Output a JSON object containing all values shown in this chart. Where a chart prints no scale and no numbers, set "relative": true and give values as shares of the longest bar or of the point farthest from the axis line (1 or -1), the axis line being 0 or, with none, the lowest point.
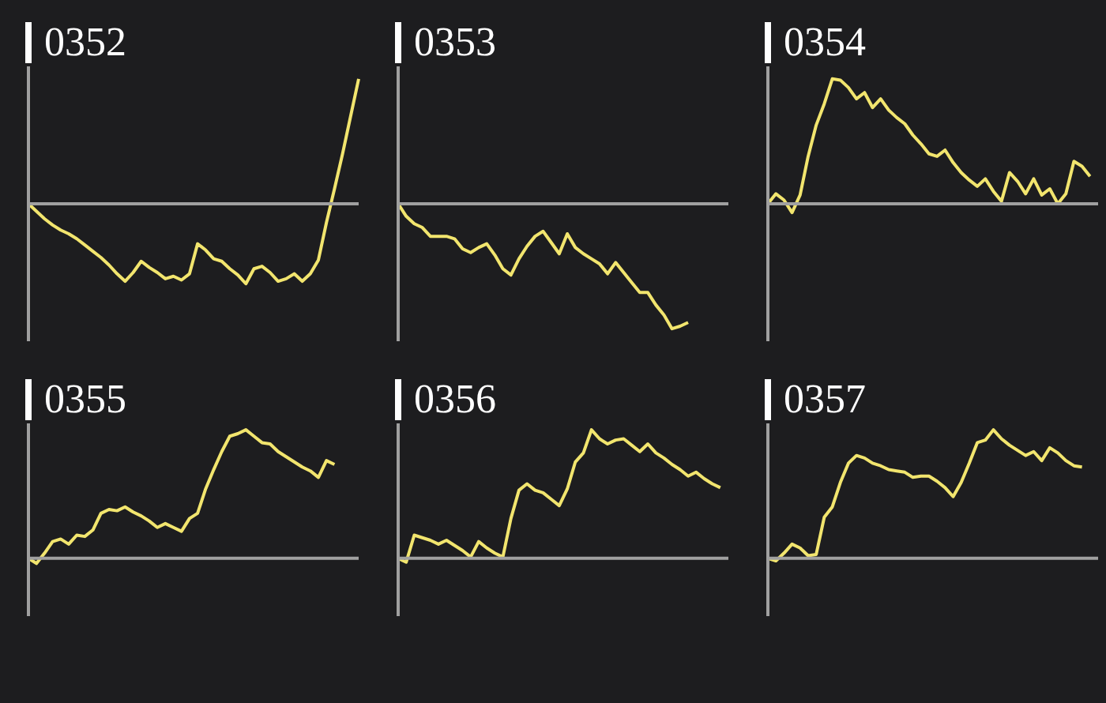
{
  "chart_data": [
    {
      "type": "line",
      "title": "0352",
      "relative": true,
      "categories": [
        null,
        null,
        null,
        null,
        null,
        null,
        null,
        null,
        null,
        null,
        null,
        null,
        null,
        null,
        null,
        null,
        null,
        null,
        null,
        null,
        null,
        null,
        null,
        null,
        null,
        null,
        null,
        null,
        null,
        null,
        null,
        null,
        null,
        null,
        null,
        null,
        null,
        null,
        null,
        null,
        null,
        null
      ],
      "series": [
        {
          "color": "#f2e56e",
          "values": [
            0,
            -0.06,
            -0.12,
            -0.17,
            -0.21,
            -0.24,
            -0.28,
            -0.33,
            -0.38,
            -0.43,
            -0.49,
            -0.56,
            -0.62,
            -0.55,
            -0.46,
            -0.51,
            -0.55,
            -0.6,
            -0.58,
            -0.61,
            -0.56,
            -0.32,
            -0.37,
            -0.44,
            -0.46,
            -0.52,
            -0.57,
            -0.64,
            -0.52,
            -0.5,
            -0.55,
            -0.62,
            -0.6,
            -0.56,
            -0.62,
            -0.56,
            -0.45,
            -0.15,
            0.12,
            0.4,
            0.7,
            1
          ]
        }
      ]
    },
    {
      "type": "line",
      "title": "0353",
      "relative": true,
      "categories": [
        null,
        null,
        null,
        null,
        null,
        null,
        null,
        null,
        null,
        null,
        null,
        null,
        null,
        null,
        null,
        null,
        null,
        null,
        null,
        null,
        null,
        null,
        null,
        null,
        null,
        null,
        null,
        null,
        null,
        null,
        null,
        null,
        null,
        null,
        null,
        null,
        null,
        null,
        null,
        null,
        null,
        null
      ],
      "series": [
        {
          "color": "#f2e56e",
          "values": [
            0,
            -0.1,
            -0.16,
            -0.19,
            -0.26,
            -0.26,
            -0.26,
            -0.28,
            -0.36,
            -0.39,
            -0.35,
            -0.32,
            -0.41,
            -0.52,
            -0.57,
            -0.44,
            -0.34,
            -0.26,
            -0.22,
            -0.31,
            -0.4,
            -0.24,
            -0.35,
            -0.4,
            -0.44,
            -0.48,
            -0.56,
            -0.47,
            -0.55,
            -0.63,
            -0.71,
            -0.71,
            -0.81,
            -0.89,
            -1,
            -0.98,
            -0.95,
            null,
            null,
            null,
            null,
            null
          ]
        }
      ]
    },
    {
      "type": "line",
      "title": "0354",
      "relative": true,
      "categories": [
        null,
        null,
        null,
        null,
        null,
        null,
        null,
        null,
        null,
        null,
        null,
        null,
        null,
        null,
        null,
        null,
        null,
        null,
        null,
        null,
        null,
        null,
        null,
        null,
        null,
        null,
        null,
        null,
        null,
        null,
        null,
        null,
        null,
        null,
        null,
        null,
        null,
        null,
        null,
        null,
        null,
        null
      ],
      "series": [
        {
          "color": "#f2e56e",
          "values": [
            0,
            0.08,
            0.03,
            -0.07,
            0.07,
            0.38,
            0.63,
            0.8,
            1,
            0.99,
            0.93,
            0.84,
            0.89,
            0.77,
            0.84,
            0.75,
            0.69,
            0.64,
            0.55,
            0.48,
            0.4,
            0.38,
            0.43,
            0.33,
            0.25,
            0.19,
            0.14,
            0.2,
            0.1,
            0.02,
            0.25,
            0.18,
            0.08,
            0.2,
            0.07,
            0.12,
            0,
            0.08,
            0.34,
            0.3,
            0.22,
            null
          ]
        }
      ]
    },
    {
      "type": "line",
      "title": "0355",
      "relative": true,
      "categories": [
        null,
        null,
        null,
        null,
        null,
        null,
        null,
        null,
        null,
        null,
        null,
        null,
        null,
        null,
        null,
        null,
        null,
        null,
        null,
        null,
        null,
        null,
        null,
        null,
        null,
        null,
        null,
        null,
        null,
        null,
        null,
        null,
        null,
        null,
        null,
        null,
        null,
        null,
        null,
        null,
        null,
        null
      ],
      "series": [
        {
          "color": "#f2e56e",
          "values": [
            0,
            -0.04,
            0.04,
            0.13,
            0.15,
            0.11,
            0.18,
            0.17,
            0.22,
            0.35,
            0.38,
            0.37,
            0.4,
            0.36,
            0.33,
            0.29,
            0.24,
            0.27,
            0.24,
            0.21,
            0.31,
            0.35,
            0.54,
            0.69,
            0.83,
            0.95,
            0.97,
            1,
            0.95,
            0.9,
            0.89,
            0.83,
            0.79,
            0.75,
            0.71,
            0.68,
            0.63,
            0.76,
            0.73,
            null,
            null,
            null
          ]
        }
      ]
    },
    {
      "type": "line",
      "title": "0356",
      "relative": true,
      "categories": [
        null,
        null,
        null,
        null,
        null,
        null,
        null,
        null,
        null,
        null,
        null,
        null,
        null,
        null,
        null,
        null,
        null,
        null,
        null,
        null,
        null,
        null,
        null,
        null,
        null,
        null,
        null,
        null,
        null,
        null,
        null,
        null,
        null,
        null,
        null,
        null,
        null,
        null,
        null,
        null,
        null,
        null
      ],
      "series": [
        {
          "color": "#f2e56e",
          "values": [
            0,
            -0.03,
            0.18,
            0.16,
            0.14,
            0.11,
            0.14,
            0.1,
            0.06,
            0.01,
            0.13,
            0.08,
            0.04,
            0.01,
            0.31,
            0.53,
            0.58,
            0.53,
            0.51,
            0.46,
            0.41,
            0.54,
            0.75,
            0.82,
            1,
            0.93,
            0.89,
            0.92,
            0.93,
            0.88,
            0.83,
            0.89,
            0.82,
            0.78,
            0.73,
            0.69,
            0.64,
            0.67,
            0.62,
            0.58,
            0.55,
            null
          ]
        }
      ]
    },
    {
      "type": "line",
      "title": "0357",
      "relative": true,
      "categories": [
        null,
        null,
        null,
        null,
        null,
        null,
        null,
        null,
        null,
        null,
        null,
        null,
        null,
        null,
        null,
        null,
        null,
        null,
        null,
        null,
        null,
        null,
        null,
        null,
        null,
        null,
        null,
        null,
        null,
        null,
        null,
        null,
        null,
        null,
        null,
        null,
        null,
        null,
        null,
        null,
        null,
        null
      ],
      "series": [
        {
          "color": "#f2e56e",
          "values": [
            0,
            -0.02,
            0.04,
            0.11,
            0.08,
            0.02,
            0.03,
            0.32,
            0.4,
            0.59,
            0.74,
            0.8,
            0.78,
            0.74,
            0.72,
            0.69,
            0.68,
            0.67,
            0.63,
            0.64,
            0.64,
            0.6,
            0.55,
            0.48,
            0.59,
            0.74,
            0.9,
            0.92,
            1,
            0.93,
            0.88,
            0.84,
            0.8,
            0.83,
            0.76,
            0.86,
            0.82,
            0.76,
            0.72,
            0.71,
            null,
            null
          ]
        }
      ]
    }
  ]
}
